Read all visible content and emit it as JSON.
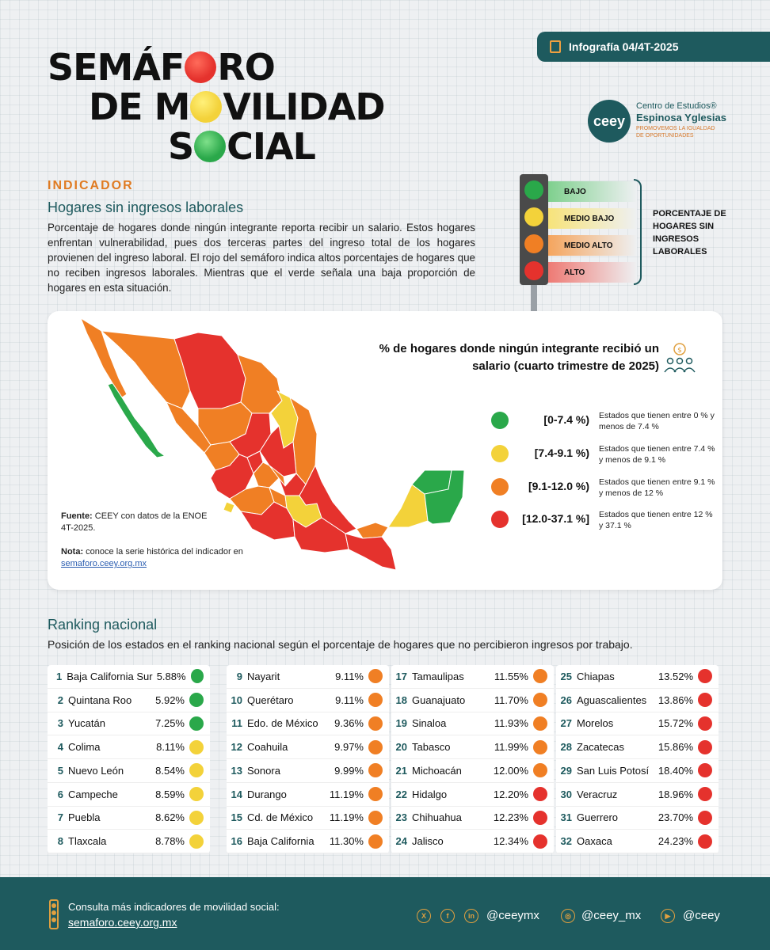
{
  "header": {
    "badge": "Infografía 04/4T-2025",
    "title_line1_a": "SEMÁF",
    "title_line1_b": "RO",
    "title_line2_a": "DE M",
    "title_line2_b": "VILIDAD",
    "title_line3_a": "S",
    "title_line3_b": "CIAL",
    "logo_short": "ceey",
    "logo_line1": "Centro de Estudios®",
    "logo_line2": "Espinosa Yglesias",
    "logo_line3": "PROMOVEMOS LA IGUALDAD DE OPORTUNIDADES"
  },
  "indicator": {
    "label": "INDICADOR",
    "title": "Hogares sin ingresos laborales",
    "description": "Porcentaje de hogares donde ningún integrante reporta recibir un salario. Estos hogares enfrentan vulnerabilidad, pues dos terceras partes del ingreso total de los hogares provienen del ingreso laboral. El rojo del semáforo indica altos porcentajes de hogares que no reciben ingresos laborales. Mientras que el verde señala una baja proporción de hogares en esta situación."
  },
  "traffic_light": {
    "levels": [
      "BAJO",
      "MEDIO BAJO",
      "MEDIO ALTO",
      "ALTO"
    ],
    "caption": "PORCENTAJE DE HOGARES SIN INGRESOS LABORALES"
  },
  "colors": {
    "green": "#2aa84a",
    "yellow": "#f3d23a",
    "orange": "#f07f24",
    "red": "#e5322d",
    "teal": "#1e5a5e"
  },
  "map": {
    "title": "% de hogares donde ningún integrante recibió un salario (cuarto trimestre de 2025)",
    "legend": [
      {
        "range": "[0-7.4 %)",
        "desc": "Estados que tienen entre 0 % y menos de 7.4 %",
        "color": "#2aa84a"
      },
      {
        "range": "[7.4-9.1 %)",
        "desc": "Estados que tienen entre 7.4 % y menos de 9.1 %",
        "color": "#f3d23a"
      },
      {
        "range": "[9.1-12.0 %)",
        "desc": "Estados que tienen entre 9.1 % y menos de 12 %",
        "color": "#f07f24"
      },
      {
        "range": "[12.0-37.1 %]",
        "desc": "Estados que tienen entre 12 % y 37.1 %",
        "color": "#e5322d"
      }
    ],
    "source_label": "Fuente:",
    "source_text": "CEEY con datos de la ENOE 4T-2025.",
    "note_label": "Nota:",
    "note_text": "conoce la serie histórica del indicador en",
    "note_link": "semaforo.ceey.org.mx"
  },
  "ranking": {
    "title": "Ranking nacional",
    "description": "Posición de los estados en el ranking nacional según el porcentaje de hogares que no percibieron ingresos por trabajo.",
    "rows": [
      {
        "rank": "1",
        "state": "Baja California Sur",
        "value": "5.88%",
        "level": "green"
      },
      {
        "rank": "2",
        "state": "Quintana Roo",
        "value": "5.92%",
        "level": "green"
      },
      {
        "rank": "3",
        "state": "Yucatán",
        "value": "7.25%",
        "level": "green"
      },
      {
        "rank": "4",
        "state": "Colima",
        "value": "8.11%",
        "level": "yellow"
      },
      {
        "rank": "5",
        "state": "Nuevo León",
        "value": "8.54%",
        "level": "yellow"
      },
      {
        "rank": "6",
        "state": "Campeche",
        "value": "8.59%",
        "level": "yellow"
      },
      {
        "rank": "7",
        "state": "Puebla",
        "value": "8.62%",
        "level": "yellow"
      },
      {
        "rank": "8",
        "state": "Tlaxcala",
        "value": "8.78%",
        "level": "yellow"
      },
      {
        "rank": "9",
        "state": "Nayarit",
        "value": "9.11%",
        "level": "orange"
      },
      {
        "rank": "10",
        "state": "Querétaro",
        "value": "9.11%",
        "level": "orange"
      },
      {
        "rank": "11",
        "state": "Edo. de México",
        "value": "9.36%",
        "level": "orange"
      },
      {
        "rank": "12",
        "state": "Coahuila",
        "value": "9.97%",
        "level": "orange"
      },
      {
        "rank": "13",
        "state": "Sonora",
        "value": "9.99%",
        "level": "orange"
      },
      {
        "rank": "14",
        "state": "Durango",
        "value": "11.19%",
        "level": "orange"
      },
      {
        "rank": "15",
        "state": "Cd. de México",
        "value": "11.19%",
        "level": "orange"
      },
      {
        "rank": "16",
        "state": "Baja California",
        "value": "11.30%",
        "level": "orange"
      },
      {
        "rank": "17",
        "state": "Tamaulipas",
        "value": "11.55%",
        "level": "orange"
      },
      {
        "rank": "18",
        "state": "Guanajuato",
        "value": "11.70%",
        "level": "orange"
      },
      {
        "rank": "19",
        "state": "Sinaloa",
        "value": "11.93%",
        "level": "orange"
      },
      {
        "rank": "20",
        "state": "Tabasco",
        "value": "11.99%",
        "level": "orange"
      },
      {
        "rank": "21",
        "state": "Michoacán",
        "value": "12.00%",
        "level": "orange"
      },
      {
        "rank": "22",
        "state": "Hidalgo",
        "value": "12.20%",
        "level": "red"
      },
      {
        "rank": "23",
        "state": "Chihuahua",
        "value": "12.23%",
        "level": "red"
      },
      {
        "rank": "24",
        "state": "Jalisco",
        "value": "12.34%",
        "level": "red"
      },
      {
        "rank": "25",
        "state": "Chiapas",
        "value": "13.52%",
        "level": "red"
      },
      {
        "rank": "26",
        "state": "Aguascalientes",
        "value": "13.86%",
        "level": "red"
      },
      {
        "rank": "27",
        "state": "Morelos",
        "value": "15.72%",
        "level": "red"
      },
      {
        "rank": "28",
        "state": "Zacatecas",
        "value": "15.86%",
        "level": "red"
      },
      {
        "rank": "29",
        "state": "San Luis Potosí",
        "value": "18.40%",
        "level": "red"
      },
      {
        "rank": "30",
        "state": "Veracruz",
        "value": "18.96%",
        "level": "red"
      },
      {
        "rank": "31",
        "state": "Guerrero",
        "value": "23.70%",
        "level": "red"
      },
      {
        "rank": "32",
        "state": "Oaxaca",
        "value": "24.23%",
        "level": "red"
      }
    ]
  },
  "footer": {
    "text": "Consulta más indicadores de movilidad social:",
    "link": "semaforo.ceey.org.mx",
    "social": [
      {
        "handle": "@ceeymx",
        "icons": [
          "x-icon",
          "facebook-icon",
          "linkedin-icon"
        ]
      },
      {
        "handle": "@ceey_mx",
        "icons": [
          "instagram-icon"
        ]
      },
      {
        "handle": "@ceey",
        "icons": [
          "youtube-icon"
        ]
      }
    ]
  }
}
